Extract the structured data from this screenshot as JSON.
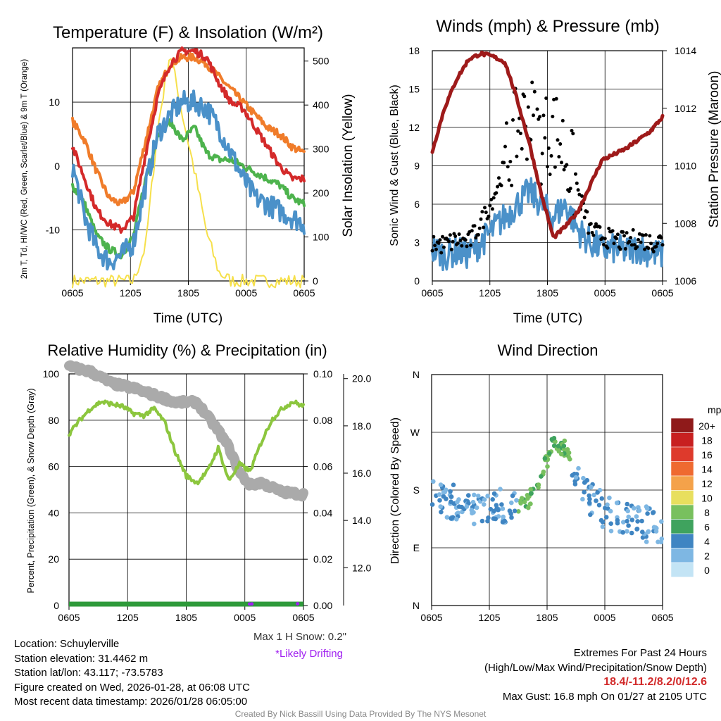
{
  "colors": {
    "red": "#d42a2a",
    "orange": "#f07c2a",
    "green": "#4db34d",
    "blue": "#4b91c9",
    "yellow": "#f6e04b",
    "maroon": "#9e1a1a",
    "lightgreen": "#8cc63e",
    "gray": "#aaaaaa",
    "purple": "#a020f0",
    "darkgreen": "#2e9a3a"
  },
  "time_ticks": [
    "0605",
    "1205",
    "1805",
    "0005",
    "0605"
  ],
  "chart_data": [
    {
      "id": "temp",
      "type": "line",
      "title": "Temperature (F) & Insolation (W/m²)",
      "xlabel": "Time (UTC)",
      "ylabel": "2m T, Td, HI/WC (Red, Green, Scarlet/Blue) & 9m T (Orange)",
      "y2label": "Solar Insolation (Yellow)",
      "ylim": [
        -18,
        18.5
      ],
      "y_ticks": [
        "-10",
        "0",
        "10"
      ],
      "y2lim": [
        0,
        530
      ],
      "y2_ticks": [
        "0",
        "100",
        "200",
        "300",
        "400",
        "500"
      ],
      "series": [
        {
          "name": "2m T",
          "color": "red",
          "values": [
            [
              0,
              3
            ],
            [
              1,
              -2
            ],
            [
              2,
              -7
            ],
            [
              3,
              -9
            ],
            [
              4,
              -10
            ],
            [
              5,
              -8
            ],
            [
              6,
              2
            ],
            [
              7,
              11
            ],
            [
              8,
              16
            ],
            [
              9,
              18
            ],
            [
              10,
              18
            ],
            [
              11,
              17
            ],
            [
              12,
              13
            ],
            [
              13,
              10
            ],
            [
              14,
              9
            ],
            [
              15,
              6
            ],
            [
              16,
              3
            ],
            [
              17,
              0
            ],
            [
              18,
              -2
            ],
            [
              19,
              -2
            ]
          ]
        },
        {
          "name": "9m T",
          "color": "orange",
          "values": [
            [
              0,
              7
            ],
            [
              1,
              4
            ],
            [
              2,
              -1
            ],
            [
              3,
              -5
            ],
            [
              4,
              -6
            ],
            [
              5,
              -4
            ],
            [
              6,
              4
            ],
            [
              7,
              12
            ],
            [
              8,
              16
            ],
            [
              9,
              17
            ],
            [
              10,
              17
            ],
            [
              11,
              16
            ],
            [
              12,
              14
            ],
            [
              13,
              12
            ],
            [
              14,
              10
            ],
            [
              15,
              8
            ],
            [
              16,
              6
            ],
            [
              17,
              5
            ],
            [
              18,
              3
            ],
            [
              19,
              2
            ]
          ]
        },
        {
          "name": "Td",
          "color": "green",
          "values": [
            [
              0,
              -3
            ],
            [
              1,
              -6
            ],
            [
              2,
              -11
            ],
            [
              3,
              -13
            ],
            [
              4,
              -14
            ],
            [
              5,
              -11
            ],
            [
              6,
              -2
            ],
            [
              7,
              5
            ],
            [
              8,
              7
            ],
            [
              9,
              4
            ],
            [
              10,
              6
            ],
            [
              11,
              2
            ],
            [
              12,
              1
            ],
            [
              13,
              1
            ],
            [
              14,
              0
            ],
            [
              15,
              -1
            ],
            [
              16,
              -2
            ],
            [
              17,
              -3
            ],
            [
              18,
              -5
            ],
            [
              19,
              -6
            ]
          ]
        },
        {
          "name": "HI/WC",
          "color": "blue",
          "values": [
            [
              0,
              0
            ],
            [
              1,
              -8
            ],
            [
              2,
              -13
            ],
            [
              3,
              -15
            ],
            [
              4,
              -14
            ],
            [
              5,
              -12
            ],
            [
              6,
              -3
            ],
            [
              7,
              5
            ],
            [
              8,
              8
            ],
            [
              9,
              10
            ],
            [
              10,
              10
            ],
            [
              11,
              9
            ],
            [
              12,
              6
            ],
            [
              13,
              2
            ],
            [
              14,
              -2
            ],
            [
              15,
              -5
            ],
            [
              16,
              -6
            ],
            [
              17,
              -7
            ],
            [
              18,
              -8
            ],
            [
              19,
              -9
            ]
          ]
        },
        {
          "name": "Solar",
          "color": "yellow",
          "axis": "y2",
          "values": [
            [
              0,
              0
            ],
            [
              5,
              0
            ],
            [
              6,
              80
            ],
            [
              7,
              350
            ],
            [
              8,
              520
            ],
            [
              9,
              380
            ],
            [
              10,
              250
            ],
            [
              11,
              110
            ],
            [
              12,
              20
            ],
            [
              13,
              0
            ],
            [
              19,
              0
            ]
          ]
        }
      ]
    },
    {
      "id": "wind",
      "type": "line",
      "title": "Winds (mph) & Pressure (mb)",
      "xlabel": "Time (UTC)",
      "ylabel": "Sonic Wind & Gust (Blue, Black)",
      "y2label": "Station Pressure (Maroon)",
      "ylim": [
        0,
        18
      ],
      "y_ticks": [
        "0",
        "3",
        "6",
        "9",
        "12",
        "15",
        "18"
      ],
      "y2lim": [
        1006,
        1014
      ],
      "y2_ticks": [
        "1006",
        "1008",
        "1010",
        "1012",
        "1014"
      ],
      "series": [
        {
          "name": "Pressure",
          "color": "maroon",
          "axis": "y2",
          "values": [
            [
              0,
              1010.5
            ],
            [
              1,
              1012
            ],
            [
              2,
              1013
            ],
            [
              3,
              1013.7
            ],
            [
              4,
              1013.9
            ],
            [
              5,
              1013.8
            ],
            [
              6,
              1013.6
            ],
            [
              7,
              1012.3
            ],
            [
              8,
              1010.8
            ],
            [
              9,
              1009
            ],
            [
              10,
              1007.5
            ],
            [
              11,
              1007.9
            ],
            [
              12,
              1008.4
            ],
            [
              13,
              1009.3
            ],
            [
              14,
              1010.2
            ],
            [
              15,
              1010.4
            ],
            [
              16,
              1010.6
            ],
            [
              17,
              1010.9
            ],
            [
              18,
              1011.2
            ],
            [
              19,
              1011.7
            ]
          ]
        },
        {
          "name": "Wind",
          "color": "blue",
          "values": [
            [
              0,
              2.5
            ],
            [
              1,
              2
            ],
            [
              2,
              2.3
            ],
            [
              3,
              2.1
            ],
            [
              4,
              3
            ],
            [
              5,
              4
            ],
            [
              6,
              5
            ],
            [
              7,
              6
            ],
            [
              8,
              7
            ],
            [
              9,
              6
            ],
            [
              10,
              5
            ],
            [
              11,
              6
            ],
            [
              12,
              4
            ],
            [
              13,
              3
            ],
            [
              14,
              2.5
            ],
            [
              15,
              2.5
            ],
            [
              16,
              2.3
            ],
            [
              17,
              2.6
            ],
            [
              18,
              2.2
            ],
            [
              19,
              2
            ]
          ]
        },
        {
          "name": "Gust",
          "color": "black",
          "values": [
            [
              0,
              3
            ],
            [
              1,
              2.8
            ],
            [
              2,
              3.2
            ],
            [
              3,
              3
            ],
            [
              4,
              4.5
            ],
            [
              5,
              6.5
            ],
            [
              6,
              9
            ],
            [
              7,
              12
            ],
            [
              8,
              13
            ],
            [
              9,
              11
            ],
            [
              10,
              12
            ],
            [
              11,
              10
            ],
            [
              12,
              7
            ],
            [
              13,
              4
            ],
            [
              14,
              3.5
            ],
            [
              15,
              3.2
            ],
            [
              16,
              3
            ],
            [
              17,
              3.4
            ],
            [
              18,
              3
            ],
            [
              19,
              3.2
            ]
          ]
        }
      ]
    },
    {
      "id": "rh",
      "type": "line",
      "title": "Relative Humidity (%) & Precipitation (in)",
      "ylabel": "Percent, Precipitation (Green), & Snow Depth (Gray)",
      "ylim": [
        0,
        100
      ],
      "y_ticks": [
        "0",
        "20",
        "40",
        "60",
        "80",
        "100"
      ],
      "y2lim": [
        0,
        0.1
      ],
      "y2_ticks": [
        "0.00",
        "0.02",
        "0.04",
        "0.06",
        "0.08",
        "0.10"
      ],
      "y3lim": [
        10.4,
        20.2
      ],
      "y3_ticks": [
        "12.0",
        "14.0",
        "16.0",
        "18.0",
        "20.0"
      ],
      "series": [
        {
          "name": "RH",
          "color": "lightgreen",
          "values": [
            [
              0,
              74
            ],
            [
              1,
              80
            ],
            [
              2,
              85
            ],
            [
              3,
              88
            ],
            [
              4,
              87
            ],
            [
              5,
              86
            ],
            [
              6,
              83
            ],
            [
              7,
              82
            ],
            [
              8,
              85
            ],
            [
              9,
              79
            ],
            [
              10,
              66
            ],
            [
              11,
              56
            ],
            [
              12,
              53
            ],
            [
              13,
              58
            ],
            [
              14,
              68
            ],
            [
              15,
              54
            ],
            [
              16,
              61
            ],
            [
              17,
              58
            ],
            [
              18,
              70
            ],
            [
              19,
              80
            ],
            [
              20,
              85
            ],
            [
              21,
              88
            ],
            [
              22,
              86
            ]
          ]
        },
        {
          "name": "Snow Depth",
          "color": "gray",
          "axis": "y3",
          "values": [
            [
              0,
              20.5
            ],
            [
              2,
              20.3
            ],
            [
              4,
              19.8
            ],
            [
              6,
              19.6
            ],
            [
              8,
              19.3
            ],
            [
              10,
              19.0
            ],
            [
              12,
              19.0
            ],
            [
              14,
              17.8
            ],
            [
              15,
              17.1
            ],
            [
              16,
              16.0
            ],
            [
              17,
              15.5
            ],
            [
              18,
              15.6
            ],
            [
              19,
              15.4
            ],
            [
              20,
              15.2
            ],
            [
              22,
              15.1
            ]
          ]
        },
        {
          "name": "Precip",
          "color": "darkgreen",
          "axis": "y2",
          "values": [
            [
              0,
              0
            ],
            [
              22,
              0
            ]
          ]
        }
      ],
      "snow_max": "Max 1 H Snow: 0.2\"",
      "drifting": "*Likely Drifting"
    },
    {
      "id": "dir",
      "type": "scatter",
      "title": "Wind Direction",
      "ylabel": "Direction (Colored By Speed)",
      "y_ticks": [
        "N",
        "E",
        "S",
        "W",
        "N"
      ],
      "legend": {
        "title": "mph",
        "labels": [
          "20+",
          "18",
          "16",
          "14",
          "12",
          "10",
          "8",
          "6",
          "4",
          "2",
          "0"
        ],
        "colors": [
          "#8f1a1a",
          "#c82020",
          "#de3a2c",
          "#ef6a30",
          "#f4a24a",
          "#e8df5e",
          "#78c05e",
          "#3fa35e",
          "#3f85c2",
          "#7eb7e3",
          "#c3e4f5"
        ]
      }
    }
  ],
  "info": {
    "location": "Location: Schuylerville",
    "elevation": "Station elevation: 31.4462 m",
    "latlon": "Station lat/lon: 43.117; -73.5783",
    "created": "Figure created on Wed, 2026-01-28, at 06:08 UTC",
    "recent": "Most recent data timestamp: 2026/01/28 06:05:00"
  },
  "extremes": {
    "title": "Extremes For Past 24 Hours",
    "subtitle": "(High/Low/Max Wind/Precipitation/Snow Depth)",
    "values": "18.4/-11.2/8.2/0/12.6",
    "gust": "Max Gust: 16.8 mph On 01/27 at 2105 UTC"
  },
  "credit": "Created By Nick Bassill Using Data Provided By The NYS Mesonet"
}
